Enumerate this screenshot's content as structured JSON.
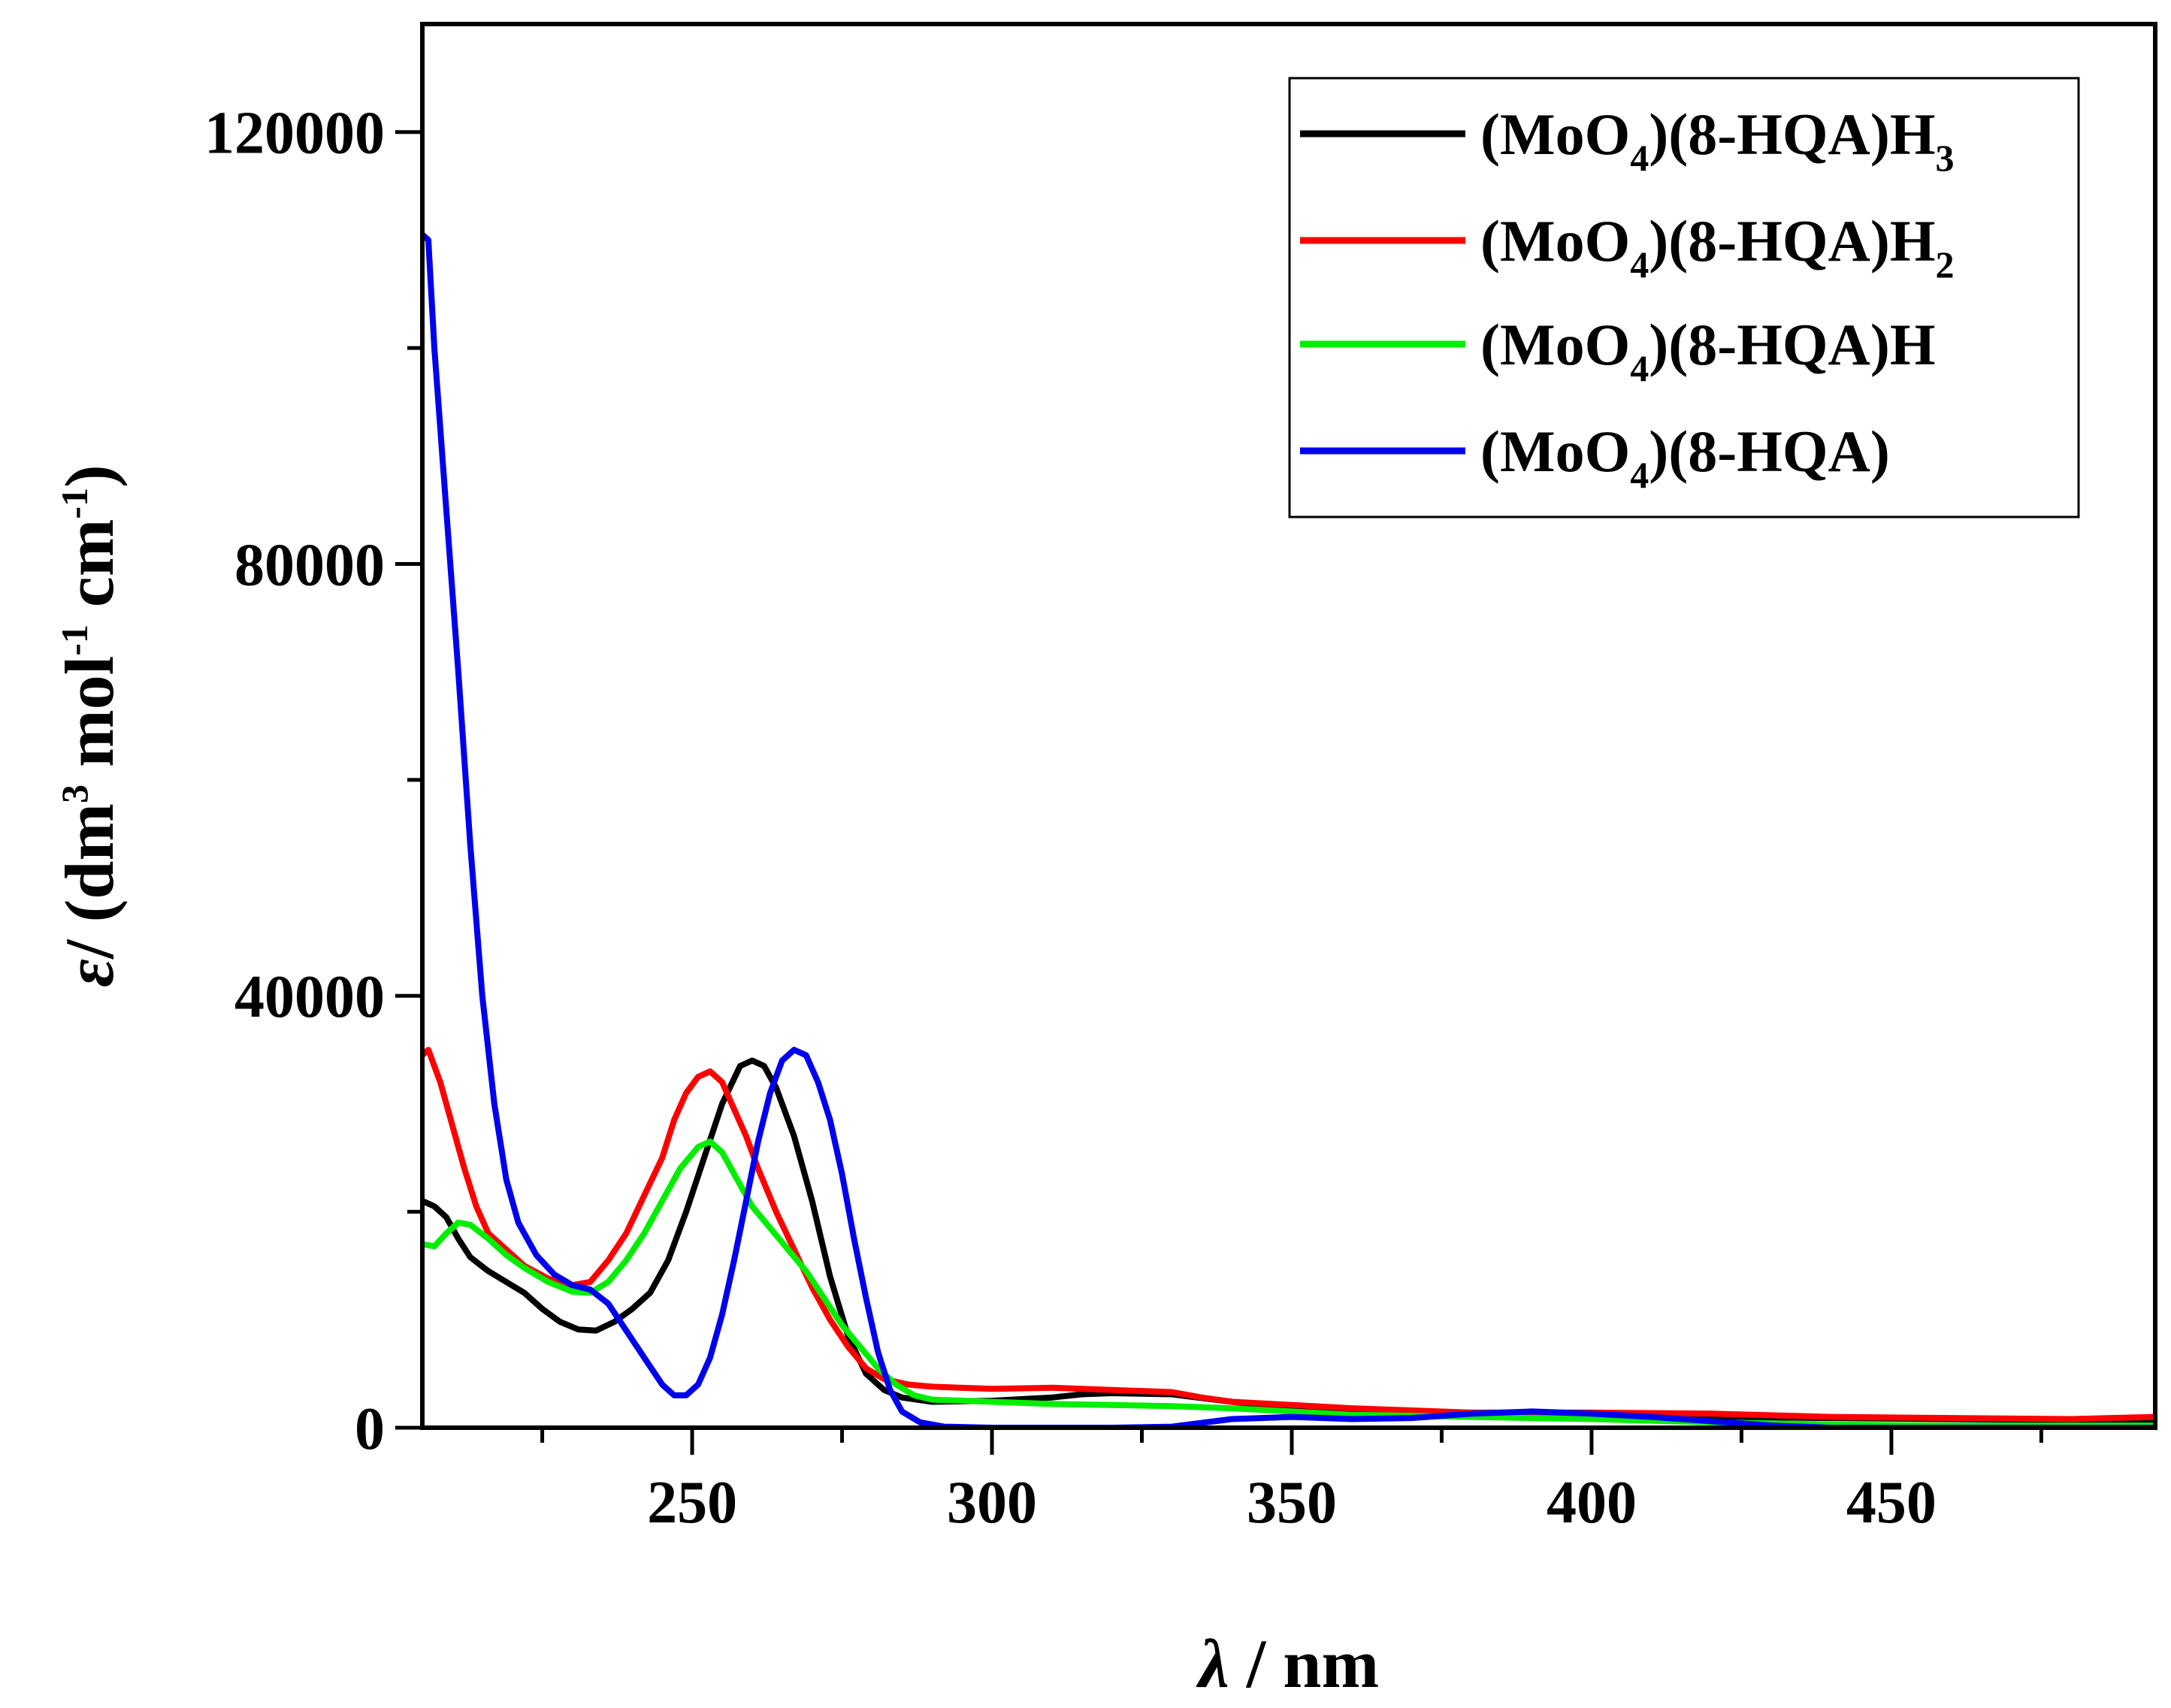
{
  "chart_data": {
    "type": "line",
    "title": "",
    "xlabel_symbol": "λ",
    "xlabel_unit": " / nm",
    "ylabel_symbol": "ε",
    "ylabel_pre": "/ (dm",
    "ylabel_exp1": "3",
    "ylabel_mid": " mol",
    "ylabel_exp2": "-1",
    "ylabel_mid2": " cm",
    "ylabel_exp3": "-1",
    "ylabel_post": ")",
    "xlim": [
      205,
      494
    ],
    "ylim": [
      0,
      130000
    ],
    "xticks_major": [
      250,
      300,
      350,
      400,
      450
    ],
    "xtick_labels": [
      "250",
      "300",
      "350",
      "400",
      "450"
    ],
    "xticks_minor": [
      225,
      275,
      325,
      375,
      425,
      475
    ],
    "yticks_major": [
      0,
      40000,
      80000,
      120000
    ],
    "ytick_labels": [
      "0",
      "40000",
      "80000",
      "120000"
    ],
    "yticks_minor": [
      20000,
      60000,
      100000
    ],
    "legend_position": "top-right",
    "series": [
      {
        "name_main": "(MoO",
        "name_sub": "4",
        "name_rest": ")(8-HQA)H",
        "name_tail_sub": "3",
        "color": "#000000",
        "points": [
          [
            205,
            21000
          ],
          [
            207,
            20500
          ],
          [
            209,
            19500
          ],
          [
            211,
            17500
          ],
          [
            213,
            15800
          ],
          [
            216,
            14500
          ],
          [
            219,
            13500
          ],
          [
            222,
            12500
          ],
          [
            225,
            11000
          ],
          [
            228,
            9800
          ],
          [
            231,
            9100
          ],
          [
            234,
            9000
          ],
          [
            237,
            9800
          ],
          [
            240,
            11000
          ],
          [
            243,
            12500
          ],
          [
            246,
            15500
          ],
          [
            249,
            20000
          ],
          [
            252,
            25000
          ],
          [
            255,
            30000
          ],
          [
            258,
            33500
          ],
          [
            260,
            34000
          ],
          [
            262,
            33500
          ],
          [
            264,
            31500
          ],
          [
            267,
            27000
          ],
          [
            270,
            21000
          ],
          [
            273,
            14000
          ],
          [
            276,
            8500
          ],
          [
            279,
            5000
          ],
          [
            282,
            3500
          ],
          [
            285,
            2800
          ],
          [
            290,
            2400
          ],
          [
            300,
            2500
          ],
          [
            310,
            2800
          ],
          [
            315,
            3100
          ],
          [
            320,
            3200
          ],
          [
            330,
            3100
          ],
          [
            340,
            2400
          ],
          [
            350,
            1800
          ],
          [
            360,
            1500
          ],
          [
            370,
            1400
          ],
          [
            380,
            1300
          ],
          [
            400,
            1200
          ],
          [
            420,
            1000
          ],
          [
            440,
            900
          ],
          [
            460,
            800
          ],
          [
            480,
            700
          ],
          [
            494,
            600
          ]
        ]
      },
      {
        "name_main": "(MoO",
        "name_sub": "4",
        "name_rest": ")(8-HQA)H",
        "name_tail_sub": "2",
        "color": "#ff0000",
        "points": [
          [
            205,
            34500
          ],
          [
            206,
            35000
          ],
          [
            208,
            32000
          ],
          [
            210,
            28000
          ],
          [
            212,
            24000
          ],
          [
            214,
            20500
          ],
          [
            216,
            18000
          ],
          [
            219,
            16500
          ],
          [
            222,
            15000
          ],
          [
            226,
            13800
          ],
          [
            230,
            13200
          ],
          [
            233,
            13500
          ],
          [
            236,
            15500
          ],
          [
            239,
            18000
          ],
          [
            242,
            21500
          ],
          [
            245,
            25000
          ],
          [
            247,
            28500
          ],
          [
            249,
            31000
          ],
          [
            251,
            32500
          ],
          [
            253,
            33000
          ],
          [
            255,
            32000
          ],
          [
            257,
            29500
          ],
          [
            259,
            27000
          ],
          [
            261,
            24000
          ],
          [
            264,
            20000
          ],
          [
            267,
            16500
          ],
          [
            270,
            13000
          ],
          [
            273,
            10000
          ],
          [
            276,
            7500
          ],
          [
            279,
            5500
          ],
          [
            282,
            4500
          ],
          [
            286,
            4000
          ],
          [
            290,
            3800
          ],
          [
            300,
            3600
          ],
          [
            310,
            3700
          ],
          [
            320,
            3500
          ],
          [
            330,
            3300
          ],
          [
            335,
            2800
          ],
          [
            340,
            2400
          ],
          [
            350,
            2100
          ],
          [
            360,
            1800
          ],
          [
            370,
            1600
          ],
          [
            380,
            1400
          ],
          [
            400,
            1400
          ],
          [
            420,
            1300
          ],
          [
            440,
            1000
          ],
          [
            460,
            900
          ],
          [
            480,
            800
          ],
          [
            494,
            1000
          ]
        ]
      },
      {
        "name_main": "(MoO",
        "name_sub": "4",
        "name_rest": ")(8-HQA)H",
        "name_tail_sub": "",
        "color": "#00ee00",
        "points": [
          [
            205,
            17000
          ],
          [
            207,
            16800
          ],
          [
            209,
            18000
          ],
          [
            211,
            19000
          ],
          [
            213,
            18800
          ],
          [
            216,
            17500
          ],
          [
            219,
            16000
          ],
          [
            222,
            14800
          ],
          [
            226,
            13500
          ],
          [
            230,
            12600
          ],
          [
            233,
            12500
          ],
          [
            236,
            13500
          ],
          [
            239,
            15500
          ],
          [
            242,
            18000
          ],
          [
            245,
            21000
          ],
          [
            248,
            24000
          ],
          [
            251,
            26000
          ],
          [
            253,
            26500
          ],
          [
            255,
            25500
          ],
          [
            257,
            23500
          ],
          [
            260,
            20500
          ],
          [
            263,
            18500
          ],
          [
            266,
            16500
          ],
          [
            269,
            14500
          ],
          [
            272,
            12000
          ],
          [
            275,
            9500
          ],
          [
            278,
            7500
          ],
          [
            281,
            5500
          ],
          [
            284,
            4000
          ],
          [
            287,
            3000
          ],
          [
            290,
            2600
          ],
          [
            300,
            2400
          ],
          [
            310,
            2200
          ],
          [
            320,
            2100
          ],
          [
            330,
            2000
          ],
          [
            340,
            1800
          ],
          [
            350,
            1500
          ],
          [
            360,
            1200
          ],
          [
            380,
            1000
          ],
          [
            400,
            800
          ],
          [
            420,
            500
          ],
          [
            440,
            300
          ],
          [
            460,
            200
          ],
          [
            480,
            200
          ],
          [
            494,
            200
          ]
        ]
      },
      {
        "name_main": "(MoO",
        "name_sub": "4",
        "name_rest": ")(8-HQA)",
        "name_tail_sub": "",
        "color": "#0000ee",
        "points": [
          [
            205,
            110500
          ],
          [
            206,
            110000
          ],
          [
            207,
            100000
          ],
          [
            209,
            85000
          ],
          [
            211,
            70000
          ],
          [
            213,
            54000
          ],
          [
            215,
            40000
          ],
          [
            217,
            30000
          ],
          [
            219,
            23000
          ],
          [
            221,
            19000
          ],
          [
            224,
            16000
          ],
          [
            227,
            14200
          ],
          [
            230,
            13200
          ],
          [
            233,
            12800
          ],
          [
            236,
            11500
          ],
          [
            239,
            9000
          ],
          [
            242,
            6500
          ],
          [
            245,
            4000
          ],
          [
            247,
            3000
          ],
          [
            249,
            3000
          ],
          [
            251,
            4000
          ],
          [
            253,
            6500
          ],
          [
            255,
            10500
          ],
          [
            257,
            15500
          ],
          [
            259,
            21000
          ],
          [
            261,
            26500
          ],
          [
            263,
            31000
          ],
          [
            265,
            34000
          ],
          [
            267,
            35000
          ],
          [
            269,
            34500
          ],
          [
            271,
            32000
          ],
          [
            273,
            28500
          ],
          [
            275,
            23500
          ],
          [
            277,
            17500
          ],
          [
            279,
            12000
          ],
          [
            281,
            7000
          ],
          [
            283,
            3500
          ],
          [
            285,
            1500
          ],
          [
            288,
            500
          ],
          [
            292,
            100
          ],
          [
            300,
            0
          ],
          [
            320,
            0
          ],
          [
            330,
            100
          ],
          [
            340,
            800
          ],
          [
            350,
            1000
          ],
          [
            360,
            800
          ],
          [
            370,
            900
          ],
          [
            380,
            1300
          ],
          [
            390,
            1500
          ],
          [
            400,
            1300
          ],
          [
            410,
            1000
          ],
          [
            420,
            600
          ],
          [
            430,
            200
          ],
          [
            440,
            0
          ],
          [
            460,
            0
          ],
          [
            494,
            0
          ]
        ]
      }
    ]
  }
}
